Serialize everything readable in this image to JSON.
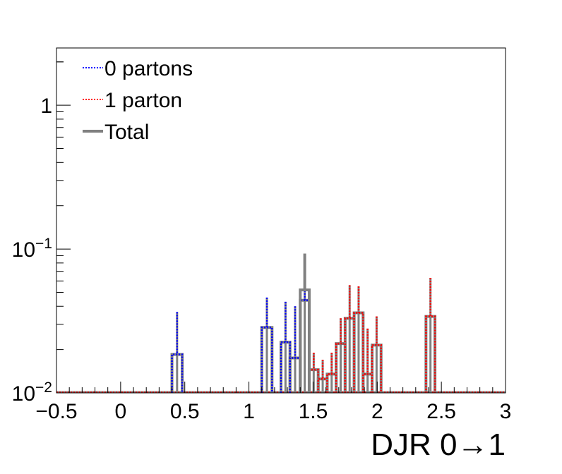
{
  "chart_data": {
    "type": "histogram",
    "xlabel": "DJR 0→1",
    "ylabel": "",
    "xlim": [
      -0.5,
      3.0
    ],
    "ylim": [
      0.01,
      2.5
    ],
    "yscale": "log",
    "grid": false,
    "legend_position": "top-left",
    "x_ticks": [
      "−0.5",
      "0",
      "0.5",
      "1",
      "1.5",
      "2",
      "2.5",
      "3"
    ],
    "x_tick_values": [
      -0.5,
      0,
      0.5,
      1,
      1.5,
      2,
      2.5,
      3
    ],
    "y_ticks": [
      {
        "value": 0.01,
        "base": "10",
        "exp": "−2"
      },
      {
        "value": 0.1,
        "base": "10",
        "exp": "−1"
      },
      {
        "value": 1,
        "base": "1",
        "exp": ""
      }
    ],
    "series": [
      {
        "name": "0 partons",
        "color": "#0000ff",
        "style": "dotted",
        "bins": [
          {
            "lo": 0.4,
            "hi": 0.48,
            "y": 0.0185,
            "err": 0.0365
          },
          {
            "lo": 1.1,
            "hi": 1.18,
            "y": 0.0285,
            "err": 0.046
          },
          {
            "lo": 1.25,
            "hi": 1.32,
            "y": 0.0225,
            "err": 0.043
          },
          {
            "lo": 1.32,
            "hi": 1.4,
            "y": 0.0175,
            "err": 0.04
          },
          {
            "lo": 1.4,
            "hi": 1.47,
            "y": 0.044,
            "err": 0.074
          }
        ]
      },
      {
        "name": "1 parton",
        "color": "#ff0000",
        "style": "dotted",
        "bins": [
          {
            "lo": 1.47,
            "hi": 1.54,
            "y": 0.0145,
            "err": 0.019
          },
          {
            "lo": 1.54,
            "hi": 1.61,
            "y": 0.0125,
            "err": 0.017
          },
          {
            "lo": 1.61,
            "hi": 1.68,
            "y": 0.0135,
            "err": 0.019
          },
          {
            "lo": 1.68,
            "hi": 1.75,
            "y": 0.022,
            "err": 0.033
          },
          {
            "lo": 1.75,
            "hi": 1.82,
            "y": 0.033,
            "err": 0.056
          },
          {
            "lo": 1.82,
            "hi": 1.89,
            "y": 0.036,
            "err": 0.055
          },
          {
            "lo": 1.89,
            "hi": 1.96,
            "y": 0.0135,
            "err": 0.028
          },
          {
            "lo": 1.96,
            "hi": 2.03,
            "y": 0.0215,
            "err": 0.034
          },
          {
            "lo": 2.38,
            "hi": 2.45,
            "y": 0.034,
            "err": 0.063
          }
        ]
      },
      {
        "name": "Total",
        "color": "#808080",
        "style": "solid",
        "bins": [
          {
            "lo": 1.4,
            "hi": 1.47,
            "y": 0.052,
            "err": 0.093
          }
        ]
      }
    ]
  }
}
